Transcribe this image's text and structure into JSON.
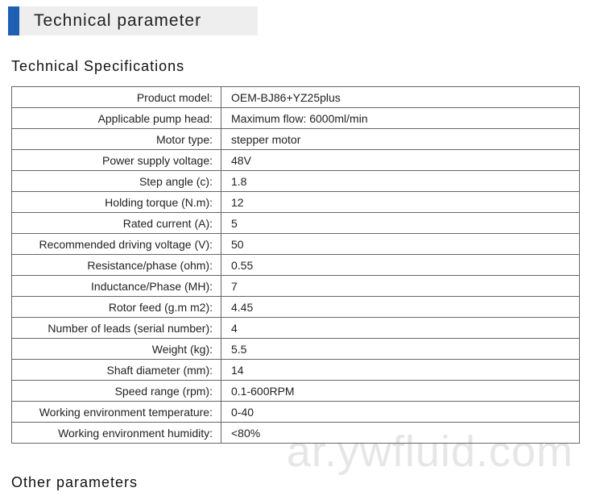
{
  "header": {
    "title": "Technical parameter",
    "accent_color": "#1e5fb4",
    "title_bg": "#eeeeee"
  },
  "specs": {
    "section_title": "Technical Specifications",
    "rows": [
      {
        "label": "Product model:",
        "value": "OEM-BJ86+YZ25plus"
      },
      {
        "label": "Applicable pump head:",
        "value": "Maximum flow: 6000ml/min"
      },
      {
        "label": "Motor type:",
        "value": "stepper motor"
      },
      {
        "label": "Power supply voltage:",
        "value": "48V"
      },
      {
        "label": "Step angle (c):",
        "value": "1.8"
      },
      {
        "label": "Holding torque (N.m):",
        "value": "12"
      },
      {
        "label": "Rated current (A):",
        "value": "5"
      },
      {
        "label": "Recommended driving voltage (V):",
        "value": "50"
      },
      {
        "label": "Resistance/phase (ohm):",
        "value": "0.55"
      },
      {
        "label": "Inductance/Phase (MH):",
        "value": "7"
      },
      {
        "label": "Rotor feed (g.m m2):",
        "value": "4.45"
      },
      {
        "label": "Number of leads (serial number):",
        "value": "4"
      },
      {
        "label": "Weight (kg):",
        "value": "5.5"
      },
      {
        "label": "Shaft diameter (mm):",
        "value": "14"
      },
      {
        "label": "Speed range (rpm):",
        "value": "0.1-600RPM"
      },
      {
        "label": "Working environment temperature:",
        "value": "0-40"
      },
      {
        "label": "Working environment humidity:",
        "value": "<80%"
      }
    ]
  },
  "other": {
    "section_title": "Other parameters"
  },
  "watermark": {
    "text": "ar.ywfluid.com",
    "color": "#e6e6e6"
  }
}
